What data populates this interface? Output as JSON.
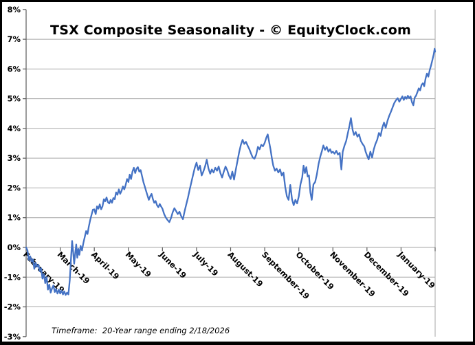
{
  "title": "TSX Composite Seasonality - © EquityClock.com",
  "footer": {
    "note": "Timeframe:  20-Year range ending 2/18/2026"
  },
  "colors": {
    "line": "#4472C4",
    "gridline": "#a6a6a6",
    "axis": "#595959",
    "text": "#000000",
    "background": "#ffffff"
  },
  "chart_data": {
    "type": "line",
    "title": "TSX Composite Seasonality - © EquityClock.com",
    "xlabel": "",
    "ylabel": "",
    "ylim": [
      -3,
      8
    ],
    "xlim_months": [
      0,
      12
    ],
    "grid": "horizontal",
    "legend": "none",
    "y_axis": {
      "ticks": [
        {
          "value": 8,
          "label": "8%"
        },
        {
          "value": 7,
          "label": "7%"
        },
        {
          "value": 6,
          "label": "6%"
        },
        {
          "value": 5,
          "label": "5%"
        },
        {
          "value": 4,
          "label": "4%"
        },
        {
          "value": 3,
          "label": "3%"
        },
        {
          "value": 2,
          "label": "2%"
        },
        {
          "value": 1,
          "label": "1%"
        },
        {
          "value": 0,
          "label": "0%"
        },
        {
          "value": -1,
          "label": "-1%"
        },
        {
          "value": -2,
          "label": "-2%"
        },
        {
          "value": -3,
          "label": "-3%"
        }
      ],
      "gridline_values": [
        7,
        6,
        5,
        4,
        3,
        2,
        1,
        0,
        -1,
        -2
      ]
    },
    "x_axis": {
      "labels": [
        "February-19",
        "March-19",
        "April-19",
        "May-19",
        "June-19",
        "July-19",
        "August-19",
        "September-19",
        "October-19",
        "November-19",
        "December-19",
        "January-19"
      ],
      "label_rotation_deg": 45
    },
    "series": [
      {
        "color": "#4472C4",
        "points": [
          [
            0.0,
            0.0
          ],
          [
            0.04,
            -0.1
          ],
          [
            0.08,
            -0.42
          ],
          [
            0.12,
            -0.3
          ],
          [
            0.16,
            -0.48
          ],
          [
            0.2,
            -0.4
          ],
          [
            0.24,
            -0.72
          ],
          [
            0.28,
            -0.52
          ],
          [
            0.32,
            -0.65
          ],
          [
            0.36,
            -0.58
          ],
          [
            0.4,
            -0.8
          ],
          [
            0.44,
            -0.7
          ],
          [
            0.48,
            -1.05
          ],
          [
            0.52,
            -0.9
          ],
          [
            0.56,
            -1.2
          ],
          [
            0.6,
            -1.0
          ],
          [
            0.64,
            -1.42
          ],
          [
            0.68,
            -1.25
          ],
          [
            0.72,
            -1.52
          ],
          [
            0.76,
            -1.38
          ],
          [
            0.8,
            -1.28
          ],
          [
            0.84,
            -1.5
          ],
          [
            0.88,
            -1.4
          ],
          [
            0.92,
            -1.55
          ],
          [
            0.96,
            -1.42
          ],
          [
            1.0,
            -1.55
          ],
          [
            1.04,
            -1.45
          ],
          [
            1.08,
            -1.58
          ],
          [
            1.12,
            -1.48
          ],
          [
            1.16,
            -1.6
          ],
          [
            1.2,
            -1.52
          ],
          [
            1.24,
            -1.58
          ],
          [
            1.28,
            -1.1
          ],
          [
            1.32,
            -0.3
          ],
          [
            1.35,
            0.22
          ],
          [
            1.38,
            -0.15
          ],
          [
            1.41,
            -0.55
          ],
          [
            1.44,
            -0.2
          ],
          [
            1.47,
            0.1
          ],
          [
            1.5,
            -0.35
          ],
          [
            1.53,
            -0.05
          ],
          [
            1.56,
            -0.25
          ],
          [
            1.6,
            0.05
          ],
          [
            1.64,
            -0.1
          ],
          [
            1.68,
            0.15
          ],
          [
            1.72,
            0.35
          ],
          [
            1.76,
            0.55
          ],
          [
            1.8,
            0.45
          ],
          [
            1.84,
            0.7
          ],
          [
            1.88,
            0.92
          ],
          [
            1.92,
            1.1
          ],
          [
            1.96,
            1.27
          ],
          [
            2.0,
            1.28
          ],
          [
            2.04,
            1.12
          ],
          [
            2.08,
            1.38
          ],
          [
            2.12,
            1.3
          ],
          [
            2.16,
            1.45
          ],
          [
            2.2,
            1.28
          ],
          [
            2.24,
            1.38
          ],
          [
            2.28,
            1.62
          ],
          [
            2.32,
            1.55
          ],
          [
            2.36,
            1.68
          ],
          [
            2.4,
            1.52
          ],
          [
            2.44,
            1.48
          ],
          [
            2.48,
            1.6
          ],
          [
            2.52,
            1.5
          ],
          [
            2.56,
            1.66
          ],
          [
            2.6,
            1.62
          ],
          [
            2.64,
            1.85
          ],
          [
            2.68,
            1.77
          ],
          [
            2.72,
            1.95
          ],
          [
            2.76,
            1.8
          ],
          [
            2.8,
            1.9
          ],
          [
            2.84,
            2.05
          ],
          [
            2.88,
            1.95
          ],
          [
            2.92,
            2.1
          ],
          [
            2.96,
            2.3
          ],
          [
            3.0,
            2.2
          ],
          [
            3.04,
            2.45
          ],
          [
            3.08,
            2.3
          ],
          [
            3.12,
            2.55
          ],
          [
            3.16,
            2.68
          ],
          [
            3.2,
            2.5
          ],
          [
            3.24,
            2.65
          ],
          [
            3.28,
            2.7
          ],
          [
            3.32,
            2.55
          ],
          [
            3.36,
            2.6
          ],
          [
            3.4,
            2.4
          ],
          [
            3.44,
            2.2
          ],
          [
            3.48,
            2.05
          ],
          [
            3.52,
            1.9
          ],
          [
            3.56,
            1.75
          ],
          [
            3.6,
            1.6
          ],
          [
            3.64,
            1.72
          ],
          [
            3.68,
            1.8
          ],
          [
            3.72,
            1.62
          ],
          [
            3.76,
            1.5
          ],
          [
            3.8,
            1.56
          ],
          [
            3.84,
            1.42
          ],
          [
            3.88,
            1.35
          ],
          [
            3.92,
            1.46
          ],
          [
            3.96,
            1.38
          ],
          [
            4.0,
            1.3
          ],
          [
            4.05,
            1.12
          ],
          [
            4.1,
            1.0
          ],
          [
            4.15,
            0.92
          ],
          [
            4.2,
            0.85
          ],
          [
            4.25,
            0.98
          ],
          [
            4.3,
            1.18
          ],
          [
            4.35,
            1.32
          ],
          [
            4.4,
            1.22
          ],
          [
            4.45,
            1.12
          ],
          [
            4.5,
            1.2
          ],
          [
            4.55,
            1.05
          ],
          [
            4.6,
            0.95
          ],
          [
            4.65,
            1.22
          ],
          [
            4.7,
            1.45
          ],
          [
            4.75,
            1.68
          ],
          [
            4.8,
            1.95
          ],
          [
            4.85,
            2.2
          ],
          [
            4.9,
            2.45
          ],
          [
            4.95,
            2.68
          ],
          [
            5.0,
            2.85
          ],
          [
            5.05,
            2.6
          ],
          [
            5.1,
            2.75
          ],
          [
            5.15,
            2.42
          ],
          [
            5.2,
            2.55
          ],
          [
            5.25,
            2.72
          ],
          [
            5.3,
            2.95
          ],
          [
            5.35,
            2.65
          ],
          [
            5.4,
            2.48
          ],
          [
            5.45,
            2.62
          ],
          [
            5.5,
            2.52
          ],
          [
            5.55,
            2.68
          ],
          [
            5.6,
            2.58
          ],
          [
            5.65,
            2.72
          ],
          [
            5.7,
            2.5
          ],
          [
            5.75,
            2.35
          ],
          [
            5.8,
            2.55
          ],
          [
            5.85,
            2.72
          ],
          [
            5.9,
            2.6
          ],
          [
            5.95,
            2.42
          ],
          [
            6.0,
            2.3
          ],
          [
            6.05,
            2.55
          ],
          [
            6.1,
            2.28
          ],
          [
            6.15,
            2.6
          ],
          [
            6.2,
            2.9
          ],
          [
            6.25,
            3.2
          ],
          [
            6.3,
            3.45
          ],
          [
            6.35,
            3.62
          ],
          [
            6.4,
            3.48
          ],
          [
            6.45,
            3.55
          ],
          [
            6.5,
            3.42
          ],
          [
            6.55,
            3.3
          ],
          [
            6.6,
            3.15
          ],
          [
            6.65,
            3.02
          ],
          [
            6.7,
            2.98
          ],
          [
            6.75,
            3.12
          ],
          [
            6.8,
            3.38
          ],
          [
            6.85,
            3.3
          ],
          [
            6.9,
            3.45
          ],
          [
            6.95,
            3.4
          ],
          [
            7.0,
            3.52
          ],
          [
            7.05,
            3.7
          ],
          [
            7.09,
            3.8
          ],
          [
            7.13,
            3.55
          ],
          [
            7.17,
            3.3
          ],
          [
            7.21,
            3.0
          ],
          [
            7.25,
            2.75
          ],
          [
            7.3,
            2.58
          ],
          [
            7.35,
            2.65
          ],
          [
            7.4,
            2.52
          ],
          [
            7.45,
            2.62
          ],
          [
            7.5,
            2.42
          ],
          [
            7.55,
            2.52
          ],
          [
            7.6,
            2.05
          ],
          [
            7.65,
            1.72
          ],
          [
            7.7,
            1.6
          ],
          [
            7.75,
            2.1
          ],
          [
            7.8,
            1.62
          ],
          [
            7.85,
            1.42
          ],
          [
            7.9,
            1.6
          ],
          [
            7.95,
            1.48
          ],
          [
            8.0,
            1.72
          ],
          [
            8.05,
            2.12
          ],
          [
            8.1,
            2.35
          ],
          [
            8.14,
            2.75
          ],
          [
            8.18,
            2.5
          ],
          [
            8.22,
            2.7
          ],
          [
            8.26,
            2.38
          ],
          [
            8.3,
            2.42
          ],
          [
            8.34,
            1.85
          ],
          [
            8.38,
            1.6
          ],
          [
            8.43,
            2.12
          ],
          [
            8.48,
            2.2
          ],
          [
            8.53,
            2.45
          ],
          [
            8.58,
            2.8
          ],
          [
            8.63,
            3.05
          ],
          [
            8.68,
            3.25
          ],
          [
            8.72,
            3.43
          ],
          [
            8.77,
            3.28
          ],
          [
            8.82,
            3.38
          ],
          [
            8.87,
            3.22
          ],
          [
            8.92,
            3.3
          ],
          [
            8.96,
            3.18
          ],
          [
            9.0,
            3.22
          ],
          [
            9.05,
            3.15
          ],
          [
            9.1,
            3.25
          ],
          [
            9.15,
            3.12
          ],
          [
            9.2,
            3.18
          ],
          [
            9.25,
            2.62
          ],
          [
            9.29,
            3.22
          ],
          [
            9.34,
            3.42
          ],
          [
            9.39,
            3.58
          ],
          [
            9.44,
            3.85
          ],
          [
            9.49,
            4.1
          ],
          [
            9.53,
            4.35
          ],
          [
            9.58,
            3.95
          ],
          [
            9.62,
            3.78
          ],
          [
            9.67,
            3.88
          ],
          [
            9.72,
            3.72
          ],
          [
            9.77,
            3.8
          ],
          [
            9.82,
            3.58
          ],
          [
            9.87,
            3.48
          ],
          [
            9.92,
            3.4
          ],
          [
            9.96,
            3.22
          ],
          [
            10.0,
            3.1
          ],
          [
            10.05,
            2.96
          ],
          [
            10.1,
            3.22
          ],
          [
            10.15,
            3.02
          ],
          [
            10.2,
            3.3
          ],
          [
            10.25,
            3.48
          ],
          [
            10.3,
            3.62
          ],
          [
            10.35,
            3.85
          ],
          [
            10.4,
            3.75
          ],
          [
            10.45,
            4.02
          ],
          [
            10.5,
            4.2
          ],
          [
            10.55,
            4.02
          ],
          [
            10.6,
            4.25
          ],
          [
            10.65,
            4.42
          ],
          [
            10.7,
            4.55
          ],
          [
            10.75,
            4.7
          ],
          [
            10.8,
            4.85
          ],
          [
            10.85,
            4.95
          ],
          [
            10.9,
            5.02
          ],
          [
            10.95,
            4.9
          ],
          [
            11.0,
            5.0
          ],
          [
            11.04,
            5.08
          ],
          [
            11.08,
            4.96
          ],
          [
            11.12,
            5.06
          ],
          [
            11.16,
            5.0
          ],
          [
            11.2,
            5.1
          ],
          [
            11.24,
            5.02
          ],
          [
            11.28,
            5.08
          ],
          [
            11.32,
            4.88
          ],
          [
            11.36,
            4.78
          ],
          [
            11.4,
            5.04
          ],
          [
            11.44,
            5.1
          ],
          [
            11.48,
            5.22
          ],
          [
            11.52,
            5.35
          ],
          [
            11.56,
            5.28
          ],
          [
            11.6,
            5.46
          ],
          [
            11.64,
            5.52
          ],
          [
            11.68,
            5.42
          ],
          [
            11.72,
            5.68
          ],
          [
            11.76,
            5.85
          ],
          [
            11.8,
            5.74
          ],
          [
            11.84,
            5.96
          ],
          [
            11.88,
            6.12
          ],
          [
            11.92,
            6.3
          ],
          [
            11.96,
            6.5
          ],
          [
            11.985,
            6.68
          ],
          [
            12.0,
            6.58
          ]
        ]
      }
    ]
  }
}
